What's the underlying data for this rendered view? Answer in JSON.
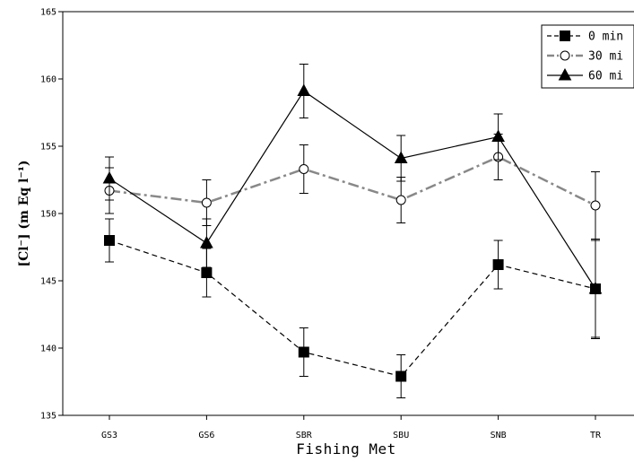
{
  "chart_data": {
    "type": "line",
    "title": "",
    "xlabel": "Fishing Met",
    "ylabel": "[Cl⁻] (m Eq l⁻¹)",
    "categories": [
      "GS3",
      "GS6",
      "SBR",
      "SBU",
      "SNB",
      "TR"
    ],
    "ylim": [
      135,
      165
    ],
    "yticks": [
      135,
      140,
      145,
      150,
      155,
      160,
      165
    ],
    "legend_position": "top-right",
    "series": [
      {
        "name": "0 min",
        "values": [
          148.0,
          145.6,
          139.7,
          137.9,
          146.2,
          144.4
        ],
        "errors": [
          1.6,
          1.8,
          1.8,
          1.6,
          1.8,
          3.7
        ],
        "marker": "square-filled",
        "line": "dashed",
        "color": "#000000"
      },
      {
        "name": "30 mi",
        "values": [
          151.7,
          150.8,
          153.3,
          151.0,
          154.2,
          150.6
        ],
        "errors": [
          1.7,
          1.7,
          1.8,
          1.7,
          1.7,
          2.5
        ],
        "marker": "circle-open",
        "line": "dash-dot",
        "color": "#888888"
      },
      {
        "name": "60 mi",
        "values": [
          152.6,
          147.8,
          159.1,
          154.1,
          155.7,
          144.4
        ],
        "errors": [
          1.6,
          1.8,
          2.0,
          1.7,
          1.7,
          3.6
        ],
        "marker": "triangle-filled",
        "line": "solid",
        "color": "#000000"
      }
    ]
  }
}
